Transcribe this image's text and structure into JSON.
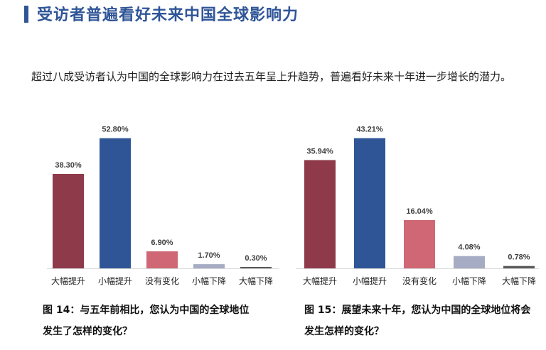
{
  "page": {
    "title": "受访者普遍看好未来中国全球影响力",
    "intro": "超过八成受访者认为中国的全球影响力在过去五年呈上升趋势，普遍看好未来十年进一步增长的潜力。"
  },
  "colors": {
    "title": "#2f5597",
    "bar_large_up": "#8e3a4a",
    "bar_small_up": "#2f5597",
    "bar_no_change": "#cf6874",
    "bar_small_down": "#a5acc3",
    "bar_large_down": "#595959"
  },
  "chart_data": [
    {
      "type": "bar",
      "categories": [
        "大幅提升",
        "小幅提升",
        "没有变化",
        "小幅下降",
        "大幅下降"
      ],
      "values": [
        38.3,
        52.8,
        6.9,
        1.7,
        0.3
      ],
      "value_labels": [
        "38.30%",
        "52.80%",
        "6.90%",
        "1.70%",
        "0.30%"
      ],
      "title": "图 14：与五年前相比，您认为中国的全球地位发生了怎样的变化？",
      "xlabel": "",
      "ylabel": "",
      "ylim": [
        0,
        55
      ],
      "grid": false,
      "legend": "none"
    },
    {
      "type": "bar",
      "categories": [
        "大幅提升",
        "小幅提升",
        "没有变化",
        "小幅下降",
        "大幅下降"
      ],
      "values": [
        35.94,
        43.21,
        16.04,
        4.08,
        0.78
      ],
      "value_labels": [
        "35.94%",
        "43.21%",
        "16.04%",
        "4.08%",
        "0.78%"
      ],
      "title": "图 15：展望未来十年，您认为中国的全球地位将会发生怎样的变化？",
      "xlabel": "",
      "ylabel": "",
      "ylim": [
        0,
        45
      ],
      "grid": false,
      "legend": "none"
    }
  ]
}
